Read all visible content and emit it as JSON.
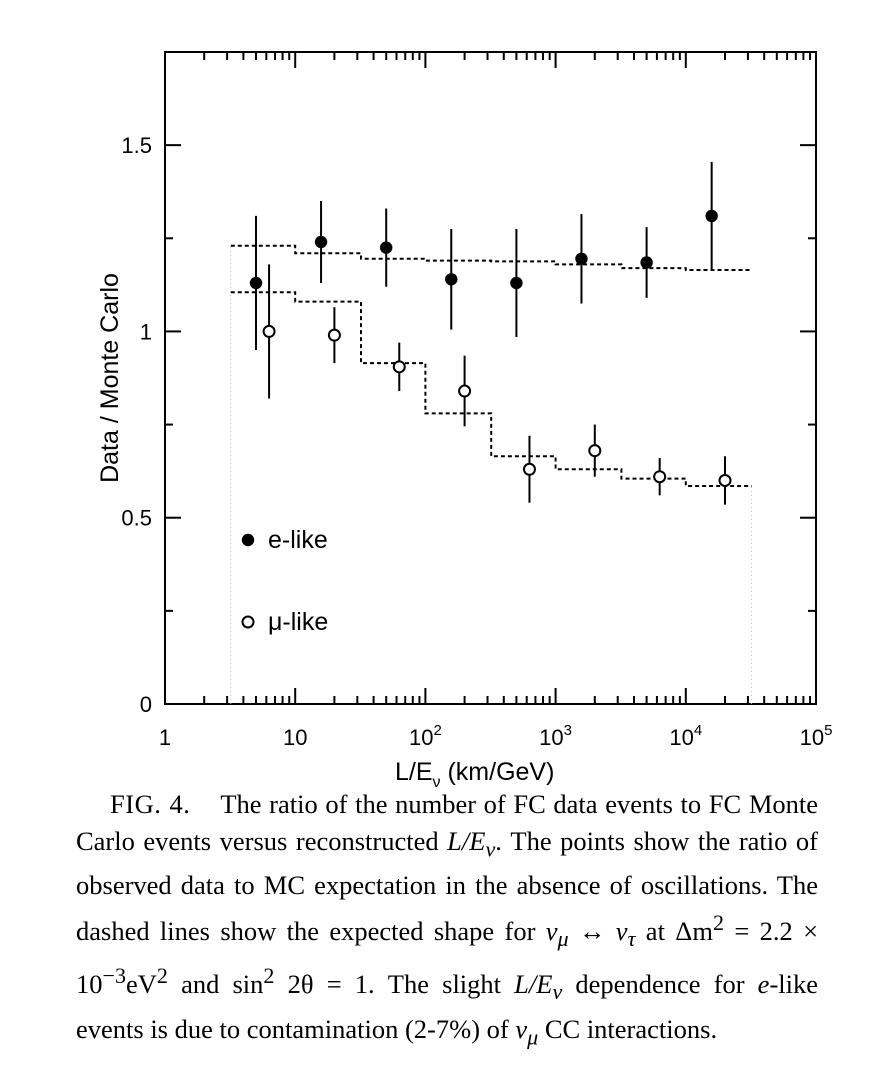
{
  "chart_data": {
    "type": "scatter",
    "xlabel_main": "L/E",
    "xlabel_sub": "ν",
    "xlabel_unit": " (km/GeV)",
    "ylabel": "Data / Monte Carlo",
    "x_scale": "log",
    "xlim": [
      1,
      100000
    ],
    "ylim": [
      0,
      1.75
    ],
    "x_ticks": [
      {
        "value": 1,
        "base": "1",
        "exp": ""
      },
      {
        "value": 10,
        "base": "10",
        "exp": ""
      },
      {
        "value": 100,
        "base": "10",
        "exp": "2"
      },
      {
        "value": 1000,
        "base": "10",
        "exp": "3"
      },
      {
        "value": 10000,
        "base": "10",
        "exp": "4"
      },
      {
        "value": 100000,
        "base": "10",
        "exp": "5"
      }
    ],
    "y_ticks": [
      {
        "value": 0,
        "label": "0"
      },
      {
        "value": 0.5,
        "label": "0.5"
      },
      {
        "value": 1,
        "label": "1"
      },
      {
        "value": 1.5,
        "label": "1.5"
      }
    ],
    "series": [
      {
        "name": "e-like",
        "marker": "filled-circle",
        "points": [
          {
            "x": 5.0,
            "y": 1.13,
            "err_lo": 0.18,
            "err_hi": 0.18
          },
          {
            "x": 15.8,
            "y": 1.24,
            "err_lo": 0.11,
            "err_hi": 0.11
          },
          {
            "x": 50,
            "y": 1.225,
            "err_lo": 0.105,
            "err_hi": 0.105
          },
          {
            "x": 158,
            "y": 1.14,
            "err_lo": 0.135,
            "err_hi": 0.135
          },
          {
            "x": 500,
            "y": 1.13,
            "err_lo": 0.145,
            "err_hi": 0.145
          },
          {
            "x": 1580,
            "y": 1.195,
            "err_lo": 0.12,
            "err_hi": 0.12
          },
          {
            "x": 5000,
            "y": 1.185,
            "err_lo": 0.095,
            "err_hi": 0.095
          },
          {
            "x": 15800,
            "y": 1.31,
            "err_lo": 0.145,
            "err_hi": 0.145
          }
        ],
        "expectation_steps": [
          {
            "x0": 3.2,
            "x1": 10,
            "y": 1.23
          },
          {
            "x0": 10,
            "x1": 32,
            "y": 1.21
          },
          {
            "x0": 32,
            "x1": 100,
            "y": 1.195
          },
          {
            "x0": 100,
            "x1": 320,
            "y": 1.19
          },
          {
            "x0": 320,
            "x1": 1000,
            "y": 1.188
          },
          {
            "x0": 1000,
            "x1": 3200,
            "y": 1.18
          },
          {
            "x0": 3200,
            "x1": 10000,
            "y": 1.17
          },
          {
            "x0": 10000,
            "x1": 32000,
            "y": 1.165
          }
        ]
      },
      {
        "name": "μ-like",
        "marker": "open-circle",
        "points": [
          {
            "x": 6.3,
            "y": 1.0,
            "err_lo": 0.18,
            "err_hi": 0.18
          },
          {
            "x": 20,
            "y": 0.99,
            "err_lo": 0.075,
            "err_hi": 0.075
          },
          {
            "x": 63,
            "y": 0.905,
            "err_lo": 0.065,
            "err_hi": 0.065
          },
          {
            "x": 200,
            "y": 0.84,
            "err_lo": 0.095,
            "err_hi": 0.095
          },
          {
            "x": 630,
            "y": 0.63,
            "err_lo": 0.09,
            "err_hi": 0.09
          },
          {
            "x": 2000,
            "y": 0.68,
            "err_lo": 0.07,
            "err_hi": 0.07
          },
          {
            "x": 6300,
            "y": 0.61,
            "err_lo": 0.05,
            "err_hi": 0.05
          },
          {
            "x": 20000,
            "y": 0.6,
            "err_lo": 0.065,
            "err_hi": 0.065
          }
        ],
        "expectation_steps": [
          {
            "x0": 3.2,
            "x1": 10,
            "y": 1.105
          },
          {
            "x0": 10,
            "x1": 32,
            "y": 1.08
          },
          {
            "x0": 32,
            "x1": 100,
            "y": 0.915
          },
          {
            "x0": 100,
            "x1": 320,
            "y": 0.78
          },
          {
            "x0": 320,
            "x1": 1000,
            "y": 0.665
          },
          {
            "x0": 1000,
            "x1": 3200,
            "y": 0.63
          },
          {
            "x0": 3200,
            "x1": 10000,
            "y": 0.605
          },
          {
            "x0": 10000,
            "x1": 32000,
            "y": 0.585
          }
        ]
      }
    ],
    "legend": [
      {
        "label": "e-like",
        "marker": "filled-circle"
      },
      {
        "label": "μ-like",
        "marker": "open-circle"
      }
    ]
  },
  "caption": {
    "label": "FIG. 4.",
    "s1": "The ratio of the number of FC data events to FC Monte Carlo events versus reconstructed ",
    "le1": "L/E",
    "nu_sub": "ν",
    "s2": ". The points show the ratio of observed data to MC expectation in the absence of oscillations. The dashed lines show the expected shape for ",
    "nu_mu": "ν",
    "mu_sub": "μ",
    "arrow": " ↔ ",
    "nu_tau": "ν",
    "tau_sub": "τ",
    "s3": " at ",
    "dm": "Δm",
    "sq": "2",
    "s4": " = 2.2 × 10",
    "exp3": "−3",
    "s5": "eV",
    "sq2": "2",
    "s6": " and sin",
    "sq3": "2",
    "s7": " 2θ = 1. The slight ",
    "le2": "L/E",
    "nu_sub2": "ν",
    "s8": " dependence for ",
    "e": "e",
    "s9": "-like events is due to contamination (2-7%) of ",
    "nu_mu2": "ν",
    "mu_sub2": "μ",
    "s10": " CC interactions."
  }
}
